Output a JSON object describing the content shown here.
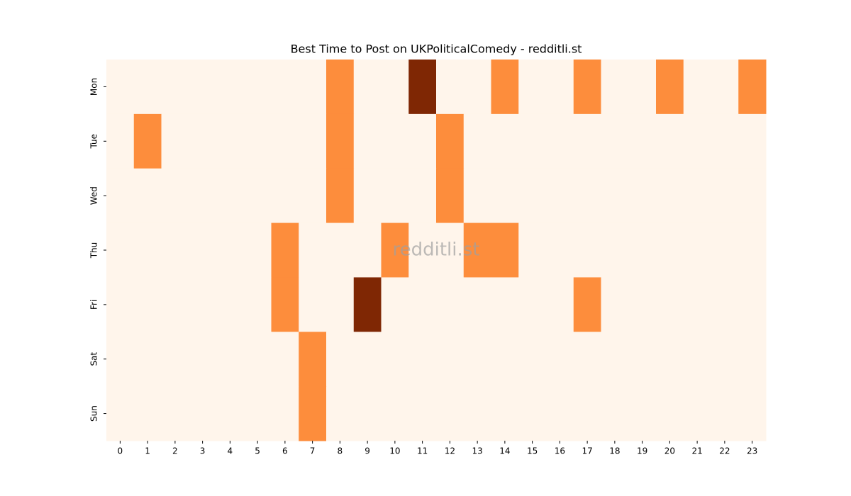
{
  "chart_data": {
    "type": "heatmap",
    "title": "Best Time to Post on UKPoliticalComedy - redditli.st",
    "watermark": "redditli.st",
    "categories": [
      0,
      1,
      2,
      3,
      4,
      5,
      6,
      7,
      8,
      9,
      10,
      11,
      12,
      13,
      14,
      15,
      16,
      17,
      18,
      19,
      20,
      21,
      22,
      23
    ],
    "rows": [
      "Mon",
      "Tue",
      "Wed",
      "Thu",
      "Fri",
      "Sat",
      "Sun"
    ],
    "values": [
      [
        0,
        0,
        0,
        0,
        0,
        0,
        0,
        0,
        1,
        0,
        0,
        2,
        0,
        0,
        1,
        0,
        0,
        1,
        0,
        0,
        1,
        0,
        0,
        1
      ],
      [
        0,
        1,
        0,
        0,
        0,
        0,
        0,
        0,
        1,
        0,
        0,
        0,
        1,
        0,
        0,
        0,
        0,
        0,
        0,
        0,
        0,
        0,
        0,
        0
      ],
      [
        0,
        0,
        0,
        0,
        0,
        0,
        0,
        0,
        1,
        0,
        0,
        0,
        1,
        0,
        0,
        0,
        0,
        0,
        0,
        0,
        0,
        0,
        0,
        0
      ],
      [
        0,
        0,
        0,
        0,
        0,
        0,
        1,
        0,
        0,
        0,
        1,
        0,
        0,
        1,
        1,
        0,
        0,
        0,
        0,
        0,
        0,
        0,
        0,
        0
      ],
      [
        0,
        0,
        0,
        0,
        0,
        0,
        1,
        0,
        0,
        2,
        0,
        0,
        0,
        0,
        0,
        0,
        0,
        1,
        0,
        0,
        0,
        0,
        0,
        0
      ],
      [
        0,
        0,
        0,
        0,
        0,
        0,
        0,
        1,
        0,
        0,
        0,
        0,
        0,
        0,
        0,
        0,
        0,
        0,
        0,
        0,
        0,
        0,
        0,
        0
      ],
      [
        0,
        0,
        0,
        0,
        0,
        0,
        0,
        1,
        0,
        0,
        0,
        0,
        0,
        0,
        0,
        0,
        0,
        0,
        0,
        0,
        0,
        0,
        0,
        0
      ]
    ],
    "colors": [
      "#fff5eb",
      "#fd8d3c",
      "#7f2704"
    ]
  }
}
